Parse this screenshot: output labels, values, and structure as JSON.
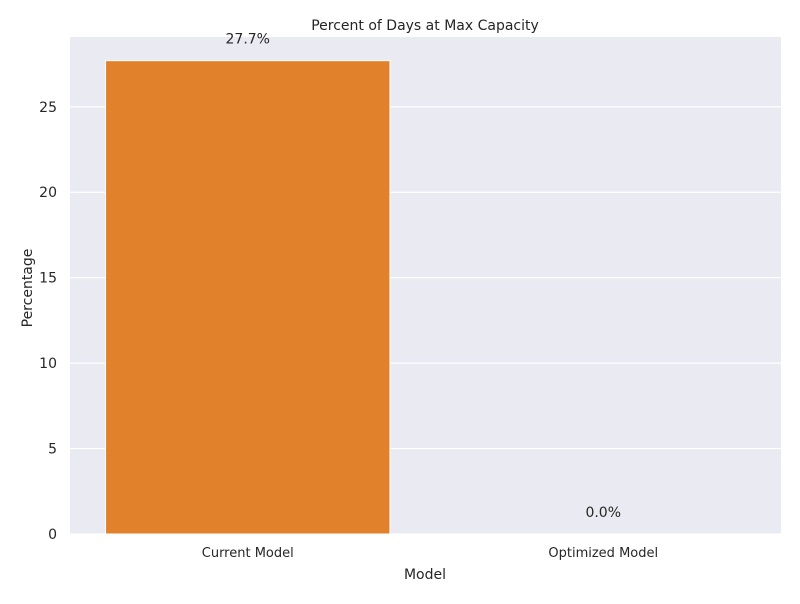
{
  "chart_data": {
    "type": "bar",
    "title": "Percent of Days at Max Capacity",
    "xlabel": "Model",
    "ylabel": "Percentage",
    "categories": [
      "Current Model",
      "Optimized Model"
    ],
    "values": [
      27.7,
      0.0
    ],
    "data_labels": [
      "27.7%",
      "0.0%"
    ],
    "ylim": [
      0,
      29.085
    ],
    "yticks": [
      0,
      5,
      10,
      15,
      20,
      25
    ],
    "ytick_labels": [
      "0",
      "5",
      "10",
      "15",
      "20",
      "25"
    ],
    "grid": true,
    "legend": false,
    "colors": {
      "background": "#eaeaf2",
      "grid": "#ffffff",
      "bar": "#e1812c",
      "text": "#262626"
    }
  }
}
